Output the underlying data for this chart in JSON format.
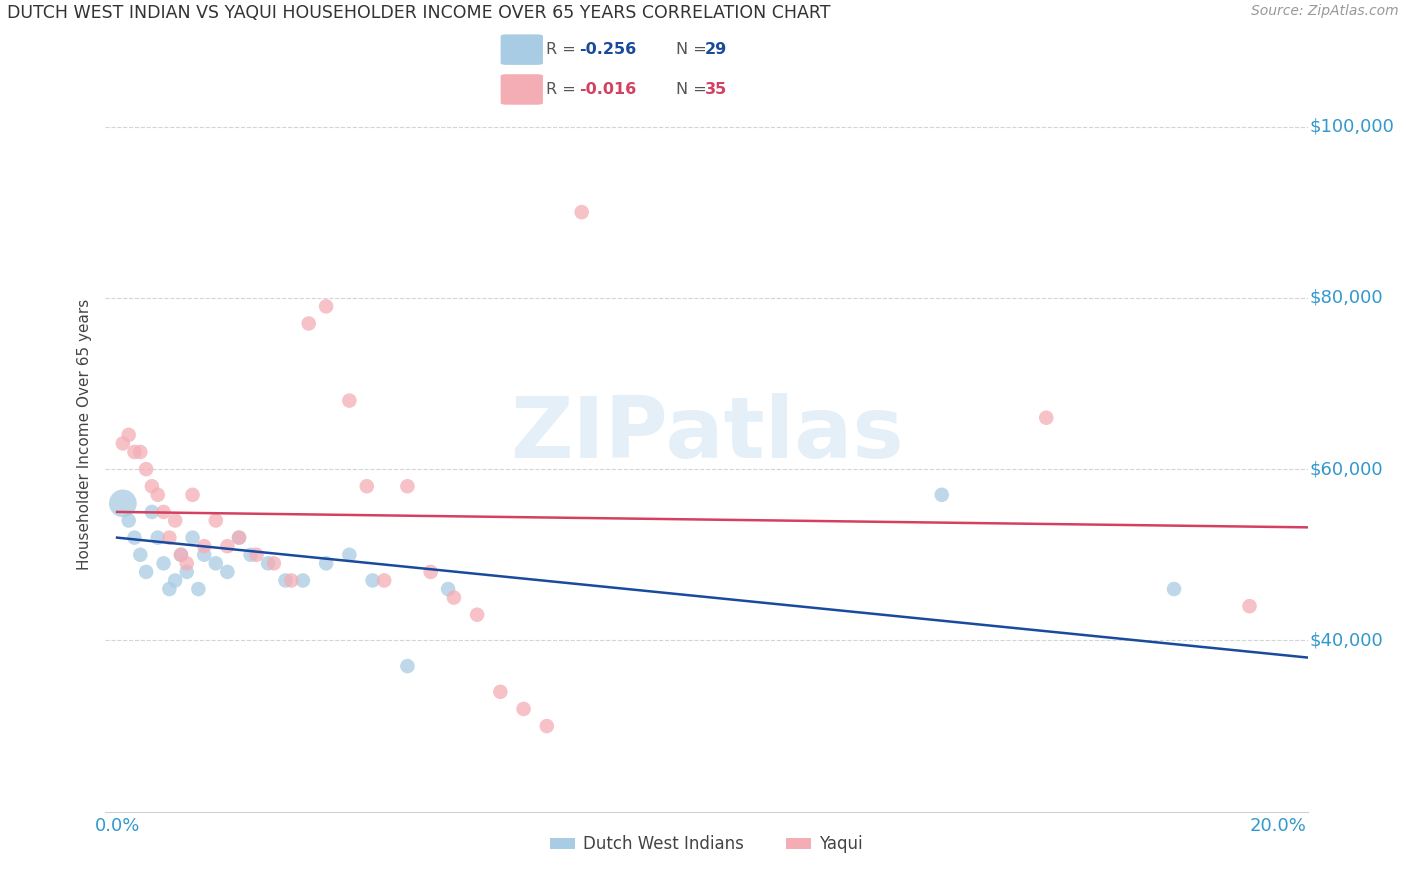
{
  "title": "DUTCH WEST INDIAN VS YAQUI HOUSEHOLDER INCOME OVER 65 YEARS CORRELATION CHART",
  "source": "Source: ZipAtlas.com",
  "ylabel": "Householder Income Over 65 years",
  "xlim": [
    -0.002,
    0.205
  ],
  "ylim": [
    20000,
    108000
  ],
  "ytick_positions": [
    40000,
    60000,
    80000,
    100000
  ],
  "ytick_labels": [
    "$40,000",
    "$60,000",
    "$80,000",
    "$100,000"
  ],
  "xtick_positions": [
    0.0,
    0.05,
    0.1,
    0.15,
    0.2
  ],
  "xtick_labels": [
    "0.0%",
    "",
    "",
    "",
    "20.0%"
  ],
  "background_color": "#ffffff",
  "watermark_text": "ZIPatlas",
  "blue_color": "#a8cce4",
  "pink_color": "#f4adb5",
  "line_blue_color": "#1a4a9e",
  "line_pink_color": "#d44060",
  "grid_color": "#d0d0d0",
  "axis_label_color": "#3399cc",
  "title_color": "#333333",
  "source_color": "#999999",
  "dutch_x": [
    0.001,
    0.002,
    0.003,
    0.004,
    0.005,
    0.006,
    0.007,
    0.008,
    0.009,
    0.01,
    0.011,
    0.012,
    0.013,
    0.014,
    0.015,
    0.017,
    0.019,
    0.021,
    0.023,
    0.026,
    0.029,
    0.032,
    0.036,
    0.04,
    0.044,
    0.05,
    0.057,
    0.142,
    0.182
  ],
  "dutch_y": [
    56000,
    54000,
    52000,
    50000,
    48000,
    55000,
    52000,
    49000,
    46000,
    47000,
    50000,
    48000,
    52000,
    46000,
    50000,
    49000,
    48000,
    52000,
    50000,
    49000,
    47000,
    47000,
    49000,
    50000,
    47000,
    37000,
    46000,
    57000,
    46000
  ],
  "dutch_sizes": [
    400,
    110,
    110,
    110,
    110,
    110,
    110,
    110,
    110,
    110,
    110,
    110,
    110,
    110,
    110,
    110,
    110,
    110,
    110,
    110,
    110,
    110,
    110,
    110,
    110,
    110,
    110,
    110,
    110
  ],
  "yaqui_x": [
    0.001,
    0.002,
    0.003,
    0.004,
    0.005,
    0.006,
    0.007,
    0.008,
    0.009,
    0.01,
    0.011,
    0.012,
    0.013,
    0.015,
    0.017,
    0.019,
    0.021,
    0.024,
    0.027,
    0.03,
    0.033,
    0.036,
    0.04,
    0.043,
    0.046,
    0.05,
    0.054,
    0.058,
    0.062,
    0.066,
    0.07,
    0.074,
    0.08,
    0.16,
    0.195
  ],
  "yaqui_y": [
    63000,
    64000,
    62000,
    62000,
    60000,
    58000,
    57000,
    55000,
    52000,
    54000,
    50000,
    49000,
    57000,
    51000,
    54000,
    51000,
    52000,
    50000,
    49000,
    47000,
    77000,
    79000,
    68000,
    58000,
    47000,
    58000,
    48000,
    45000,
    43000,
    34000,
    32000,
    30000,
    90000,
    66000,
    44000
  ],
  "dutch_trend_x": [
    0.0,
    0.205
  ],
  "dutch_trend_y": [
    52000,
    38000
  ],
  "yaqui_trend_x": [
    0.0,
    0.205
  ],
  "yaqui_trend_y": [
    55000,
    53200
  ],
  "legend_blue_r": "-0.256",
  "legend_blue_n": "29",
  "legend_pink_r": "-0.016",
  "legend_pink_n": "35",
  "bottom_legend_labels": [
    "Dutch West Indians",
    "Yaqui"
  ]
}
